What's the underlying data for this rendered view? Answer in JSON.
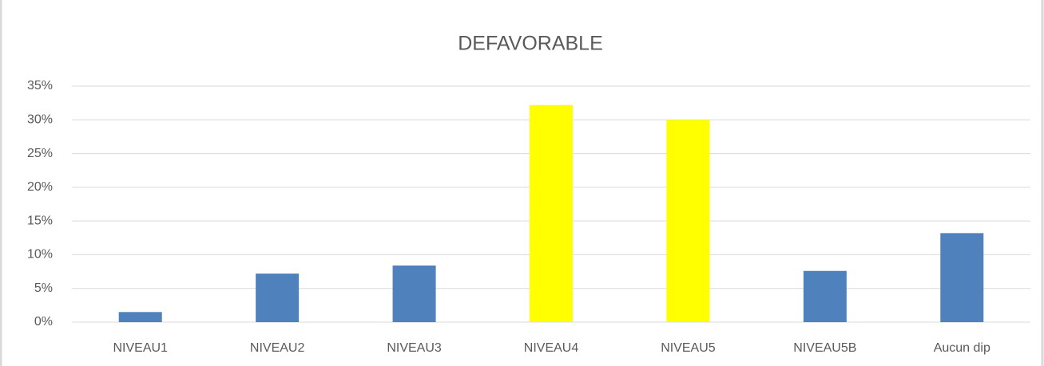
{
  "chart_data": {
    "type": "bar",
    "title": "DEFAVORABLE",
    "categories": [
      "NIVEAU1",
      "NIVEAU2",
      "NIVEAU3",
      "NIVEAU4",
      "NIVEAU5",
      "NIVEAU5B",
      "Aucun dip"
    ],
    "values": [
      1.5,
      7.2,
      8.4,
      32.2,
      30.0,
      7.6,
      13.2
    ],
    "colors": [
      "#4f81bd",
      "#4f81bd",
      "#4f81bd",
      "#ffff00",
      "#ffff00",
      "#4f81bd",
      "#4f81bd"
    ],
    "ylim": [
      0,
      35
    ],
    "yticks": [
      {
        "value": 0,
        "label": "0%"
      },
      {
        "value": 5,
        "label": "5%"
      },
      {
        "value": 10,
        "label": "10%"
      },
      {
        "value": 15,
        "label": "15%"
      },
      {
        "value": 20,
        "label": "20%"
      },
      {
        "value": 25,
        "label": "25%"
      },
      {
        "value": 30,
        "label": "30%"
      },
      {
        "value": 35,
        "label": "35%"
      }
    ],
    "grid": true
  }
}
